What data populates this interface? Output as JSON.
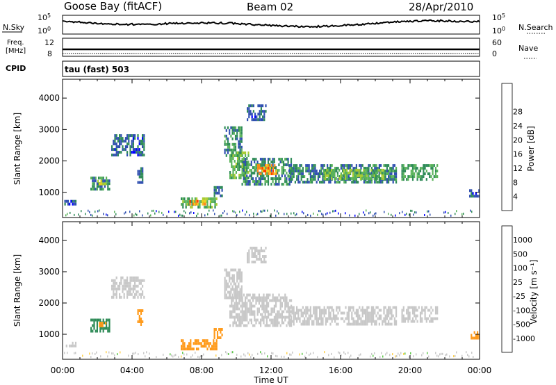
{
  "header": {
    "station": "Goose Bay (fitACF)",
    "beam": "Beam 02",
    "date": "28/Apr/2010"
  },
  "strip_panels": {
    "nsky": {
      "label": "N.Sky",
      "ticks": [
        {
          "base": "10",
          "exp": "5"
        },
        {
          "base": "10",
          "exp": "0"
        }
      ],
      "right_label": "N.Search",
      "right_ticks": [
        {
          "base": "10",
          "exp": "5"
        },
        {
          "base": "10",
          "exp": "0"
        }
      ]
    },
    "freq": {
      "label_line1": "Freq.",
      "label_line2": "[MHz]",
      "ticks": [
        "12",
        "8"
      ],
      "right_label": "Nave",
      "right_ticks": [
        "60",
        "0"
      ]
    },
    "cpid": {
      "label": "CPID",
      "mode": "tau (fast) 503"
    }
  },
  "chart_data": [
    {
      "type": "heatmap",
      "name": "power",
      "title": "",
      "xlabel": "Time UT",
      "ylabel": "Slant Range [km]",
      "xlim": [
        0,
        24
      ],
      "ylim": [
        200,
        4600
      ],
      "x_ticks": [
        "00:00",
        "04:00",
        "08:00",
        "12:00",
        "16:00",
        "20:00",
        "00:00"
      ],
      "y_ticks": [
        1000,
        2000,
        3000,
        4000
      ],
      "colorbar": {
        "label": "Power [dB]",
        "tick_labels": [
          "4",
          "8",
          "12",
          "16",
          "20",
          "24",
          "28"
        ],
        "colors": [
          "#0000ff",
          "#2f4fb0",
          "#2e8b57",
          "#5ab35a",
          "#a8cc32",
          "#f0d020",
          "#ff8c1a",
          "#ff3b00",
          "#e60000"
        ]
      },
      "echo_regions": [
        {
          "t_start": 0.1,
          "t_end": 0.8,
          "r_start": 600,
          "r_end": 760,
          "power": 6
        },
        {
          "t_start": 1.6,
          "t_end": 2.7,
          "r_start": 1100,
          "r_end": 1500,
          "power": 10
        },
        {
          "t_start": 2.0,
          "t_end": 2.5,
          "r_start": 1250,
          "r_end": 1400,
          "power": 20
        },
        {
          "t_start": 2.8,
          "t_end": 4.7,
          "r_start": 2200,
          "r_end": 2850,
          "power": 7
        },
        {
          "t_start": 4.3,
          "t_end": 4.6,
          "r_start": 1350,
          "r_end": 1800,
          "power": 9
        },
        {
          "t_start": 6.8,
          "t_end": 8.9,
          "r_start": 560,
          "r_end": 840,
          "power": 14
        },
        {
          "t_start": 7.3,
          "t_end": 8.3,
          "r_start": 640,
          "r_end": 760,
          "power": 25
        },
        {
          "t_start": 8.7,
          "t_end": 9.2,
          "r_start": 900,
          "r_end": 1200,
          "power": 8
        },
        {
          "t_start": 9.3,
          "t_end": 10.3,
          "r_start": 2200,
          "r_end": 3100,
          "power": 10
        },
        {
          "t_start": 9.6,
          "t_end": 10.7,
          "r_start": 1500,
          "r_end": 2300,
          "power": 14
        },
        {
          "t_start": 10.3,
          "t_end": 13.2,
          "r_start": 1300,
          "r_end": 2100,
          "power": 10
        },
        {
          "t_start": 11.2,
          "t_end": 12.3,
          "r_start": 1550,
          "r_end": 1900,
          "power": 26
        },
        {
          "t_start": 13.0,
          "t_end": 19.2,
          "r_start": 1300,
          "r_end": 1900,
          "power": 9
        },
        {
          "t_start": 15.0,
          "t_end": 18.5,
          "r_start": 1450,
          "r_end": 1750,
          "power": 15
        },
        {
          "t_start": 19.5,
          "t_end": 21.6,
          "r_start": 1450,
          "r_end": 1900,
          "power": 12
        },
        {
          "t_start": 10.6,
          "t_end": 11.7,
          "r_start": 3300,
          "r_end": 3800,
          "power": 7
        },
        {
          "t_start": 23.4,
          "t_end": 24.0,
          "r_start": 850,
          "r_end": 1100,
          "power": 7
        }
      ]
    },
    {
      "type": "heatmap",
      "name": "velocity",
      "title": "",
      "xlabel": "Time UT",
      "ylabel": "Slant Range [km]",
      "xlim": [
        0,
        24
      ],
      "ylim": [
        200,
        4600
      ],
      "x_ticks": [
        "00:00",
        "04:00",
        "08:00",
        "12:00",
        "16:00",
        "20:00",
        "00:00"
      ],
      "y_ticks": [
        1000,
        2000,
        3000,
        4000
      ],
      "colorbar": {
        "label": "Velocity [m s⁻¹]",
        "tick_labels": [
          "1000",
          "500",
          "100",
          "25",
          "-25",
          "-100",
          "-500",
          "-1000"
        ],
        "colors": [
          "#0030d0",
          "#2f5fb0",
          "#2e8b57",
          "#5ec84a",
          "#c8c8c8",
          "#ffd24d",
          "#ff9a1a",
          "#ff5a00",
          "#e60000"
        ]
      },
      "echo_regions": [
        {
          "t_start": 0.1,
          "t_end": 0.8,
          "r_start": 600,
          "r_end": 760,
          "velocity": 0
        },
        {
          "t_start": 1.6,
          "t_end": 2.7,
          "r_start": 1100,
          "r_end": 1500,
          "velocity": 120
        },
        {
          "t_start": 2.0,
          "t_end": 2.5,
          "r_start": 1250,
          "r_end": 1400,
          "velocity": -300
        },
        {
          "t_start": 2.8,
          "t_end": 4.7,
          "r_start": 2200,
          "r_end": 2850,
          "velocity": 0
        },
        {
          "t_start": 4.3,
          "t_end": 4.6,
          "r_start": 1350,
          "r_end": 1800,
          "velocity": -150
        },
        {
          "t_start": 6.8,
          "t_end": 8.9,
          "r_start": 560,
          "r_end": 840,
          "velocity": -150
        },
        {
          "t_start": 8.7,
          "t_end": 9.2,
          "r_start": 900,
          "r_end": 1200,
          "velocity": -150
        },
        {
          "t_start": 9.3,
          "t_end": 10.3,
          "r_start": 2200,
          "r_end": 3100,
          "velocity": 0
        },
        {
          "t_start": 9.6,
          "t_end": 13.2,
          "r_start": 1300,
          "r_end": 2300,
          "velocity": 0
        },
        {
          "t_start": 13.0,
          "t_end": 19.2,
          "r_start": 1300,
          "r_end": 1900,
          "velocity": 0
        },
        {
          "t_start": 19.5,
          "t_end": 21.6,
          "r_start": 1450,
          "r_end": 1900,
          "velocity": 0
        },
        {
          "t_start": 10.6,
          "t_end": 11.7,
          "r_start": 3300,
          "r_end": 3800,
          "velocity": 0
        },
        {
          "t_start": 23.4,
          "t_end": 24.0,
          "r_start": 850,
          "r_end": 1100,
          "velocity": -300
        }
      ]
    }
  ]
}
